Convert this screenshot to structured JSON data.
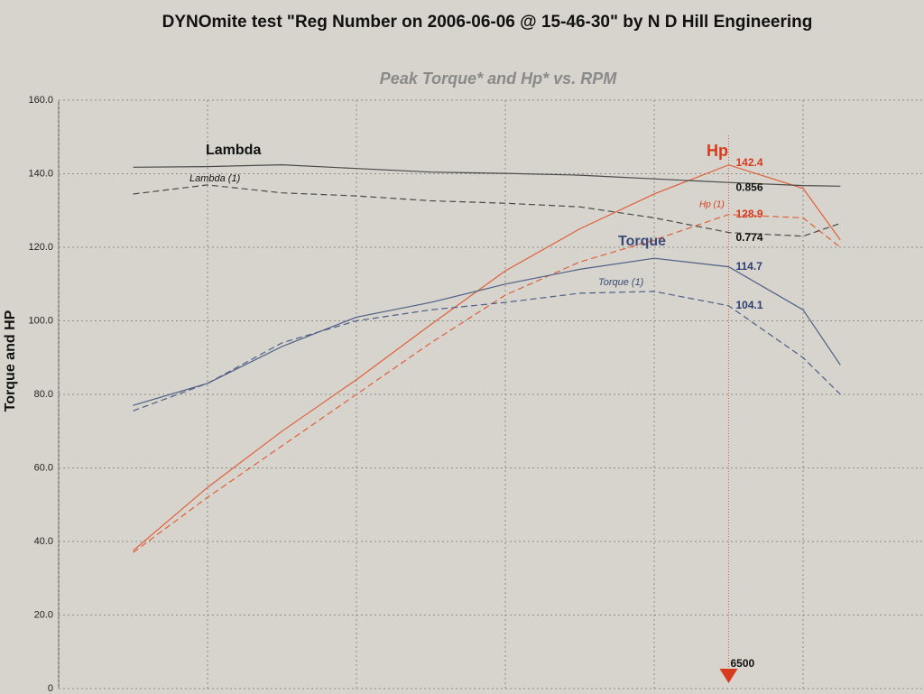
{
  "chart_data": {
    "type": "line",
    "title": "DYNOmite test \"Reg Number on 2006-06-06 @ 15-46-30\" by N D Hill Engineering",
    "subtitle": "Peak Torque* and Hp* vs. RPM",
    "y_label": "Torque and HP",
    "x": [
      2500,
      3000,
      3500,
      4000,
      4500,
      5000,
      5500,
      6000,
      6500,
      7000,
      7250
    ],
    "xlim": [
      2000,
      7700
    ],
    "xticks": [
      2000,
      3000,
      4000,
      5000,
      6000,
      7000
    ],
    "ylim": [
      0,
      160
    ],
    "yticks": [
      {
        "value": 0,
        "label": "0"
      },
      {
        "value": 20,
        "label": "20.0"
      },
      {
        "value": 40,
        "label": "40.0"
      },
      {
        "value": 60,
        "label": "60.0"
      },
      {
        "value": 80,
        "label": "80.0"
      },
      {
        "value": 100,
        "label": "100.0"
      },
      {
        "value": 120,
        "label": "120.0"
      },
      {
        "value": 140,
        "label": "140.0"
      },
      {
        "value": 160,
        "label": "160.0"
      }
    ],
    "y2lim": [
      0.026,
      0.991
    ],
    "grid": true,
    "cursor": 6500,
    "series": [
      {
        "name": "Hp",
        "color": "#e0603a",
        "style": "solid",
        "values": [
          37.5,
          54.7,
          70,
          84,
          99,
          113.6,
          125,
          134.5,
          142.4,
          136,
          122
        ],
        "cursor_value": 142.4
      },
      {
        "name": "Hp (1)",
        "color": "#e0603a",
        "style": "dashed",
        "values": [
          37,
          52,
          66,
          80,
          94,
          107,
          116,
          122,
          128.9,
          128,
          120
        ],
        "cursor_value": 128.9
      },
      {
        "name": "Torque",
        "color": "#4e5f86",
        "style": "solid",
        "values": [
          77,
          83,
          93,
          101,
          105,
          110,
          114,
          117,
          114.7,
          103,
          88
        ],
        "cursor_value": 114.7
      },
      {
        "name": "Torque (1)",
        "color": "#4e5f86",
        "style": "dashed",
        "values": [
          75.5,
          83,
          94,
          100,
          103,
          105,
          107.5,
          108,
          104.1,
          90,
          80
        ],
        "cursor_value": 104.1
      },
      {
        "name": "Lambda",
        "color": "#4a4a4a",
        "style": "solid",
        "axis": "y2",
        "values": [
          0.881,
          0.882,
          0.885,
          0.879,
          0.873,
          0.871,
          0.868,
          0.862,
          0.856,
          0.851,
          0.85
        ],
        "cursor_value": 0.856
      },
      {
        "name": "Lambda (1)",
        "color": "#4a4a4a",
        "style": "dashed",
        "axis": "y2",
        "values": [
          0.837,
          0.852,
          0.839,
          0.834,
          0.826,
          0.822,
          0.816,
          0.798,
          0.774,
          0.768,
          0.789
        ],
        "cursor_value": 0.774
      }
    ]
  }
}
